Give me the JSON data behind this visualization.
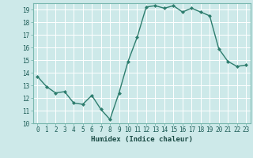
{
  "x": [
    0,
    1,
    2,
    3,
    4,
    5,
    6,
    7,
    8,
    9,
    10,
    11,
    12,
    13,
    14,
    15,
    16,
    17,
    18,
    19,
    20,
    21,
    22,
    23
  ],
  "y": [
    13.7,
    12.9,
    12.4,
    12.5,
    11.6,
    11.5,
    12.2,
    11.1,
    10.3,
    12.4,
    14.9,
    16.8,
    19.2,
    19.3,
    19.1,
    19.3,
    18.8,
    19.1,
    18.8,
    18.5,
    15.9,
    14.9,
    14.5,
    14.6
  ],
  "bg_color": "#cde9e9",
  "grid_color": "#ffffff",
  "line_color": "#2e7d6e",
  "marker_color": "#2e7d6e",
  "xlabel": "Humidex (Indice chaleur)",
  "ylim": [
    10,
    19.5
  ],
  "xlim": [
    -0.5,
    23.5
  ],
  "yticks": [
    10,
    11,
    12,
    13,
    14,
    15,
    16,
    17,
    18,
    19
  ],
  "xticks": [
    0,
    1,
    2,
    3,
    4,
    5,
    6,
    7,
    8,
    9,
    10,
    11,
    12,
    13,
    14,
    15,
    16,
    17,
    18,
    19,
    20,
    21,
    22,
    23
  ],
  "tick_fontsize": 5.5,
  "xlabel_fontsize": 6.5,
  "spine_color": "#7ab8b0",
  "tick_color": "#7ab8b0"
}
